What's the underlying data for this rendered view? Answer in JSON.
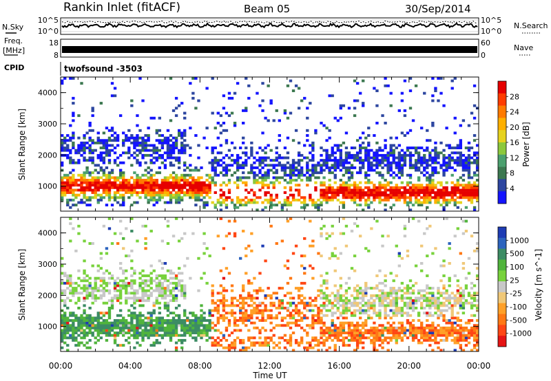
{
  "header": {
    "site": "Rankin Inlet (fitACF)",
    "beam": "Beam 05",
    "date": "30/Sep/2014"
  },
  "strips": {
    "nsky_label": "N.Sky",
    "nsearch_label": "N.Search",
    "nsky_ticks": [
      "10^5",
      "10^0"
    ],
    "nsearch_ticks": [
      "10^5",
      "10^0"
    ],
    "freq_label_1": "Freq.",
    "freq_label_2": "[MHz]",
    "freq_ticks": [
      "18",
      "8"
    ],
    "nave_label": "Nave",
    "nave_ticks": [
      "60",
      "0"
    ],
    "cpid_label": "CPID",
    "cpid_value": "twofsound -3503"
  },
  "chart_data": [
    {
      "type": "heatmap",
      "name": "power",
      "ylabel": "Slant Range [km]",
      "xlabel": "",
      "x_ticks": [
        "00:00",
        "04:00",
        "08:00",
        "12:00",
        "16:00",
        "20:00",
        "00:00"
      ],
      "y_ticks": [
        "1000",
        "2000",
        "3000",
        "4000"
      ],
      "ylim": [
        200,
        4500
      ],
      "colorbar": {
        "title": "Power [dB]",
        "labels": [
          "28",
          "24",
          "20",
          "16",
          "12",
          "8",
          "4"
        ],
        "colors": [
          "#e60000",
          "#ff3c00",
          "#ff7a00",
          "#ffb000",
          "#e6d21e",
          "#8cc83c",
          "#4ba06e",
          "#3c7850",
          "#2d46a0",
          "#1414ff"
        ]
      }
    },
    {
      "type": "heatmap",
      "name": "velocity",
      "ylabel": "Slant Range [km]",
      "xlabel": "Time UT",
      "x_ticks": [
        "00:00",
        "04:00",
        "08:00",
        "12:00",
        "16:00",
        "20:00",
        "00:00"
      ],
      "y_ticks": [
        "1000",
        "2000",
        "3000",
        "4000"
      ],
      "ylim": [
        200,
        4500
      ],
      "colorbar": {
        "title": "Velocity [m s^-1]",
        "labels": [
          "1000",
          "500",
          "100",
          "25",
          "-25",
          "-100",
          "-500",
          "-1000"
        ],
        "colors": [
          "#1e3cb4",
          "#2d64be",
          "#3c8c64",
          "#50b43c",
          "#78d23c",
          "#c8c8c8",
          "#f0c878",
          "#ffa028",
          "#ff7814",
          "#ff4614",
          "#e61414"
        ]
      }
    }
  ]
}
